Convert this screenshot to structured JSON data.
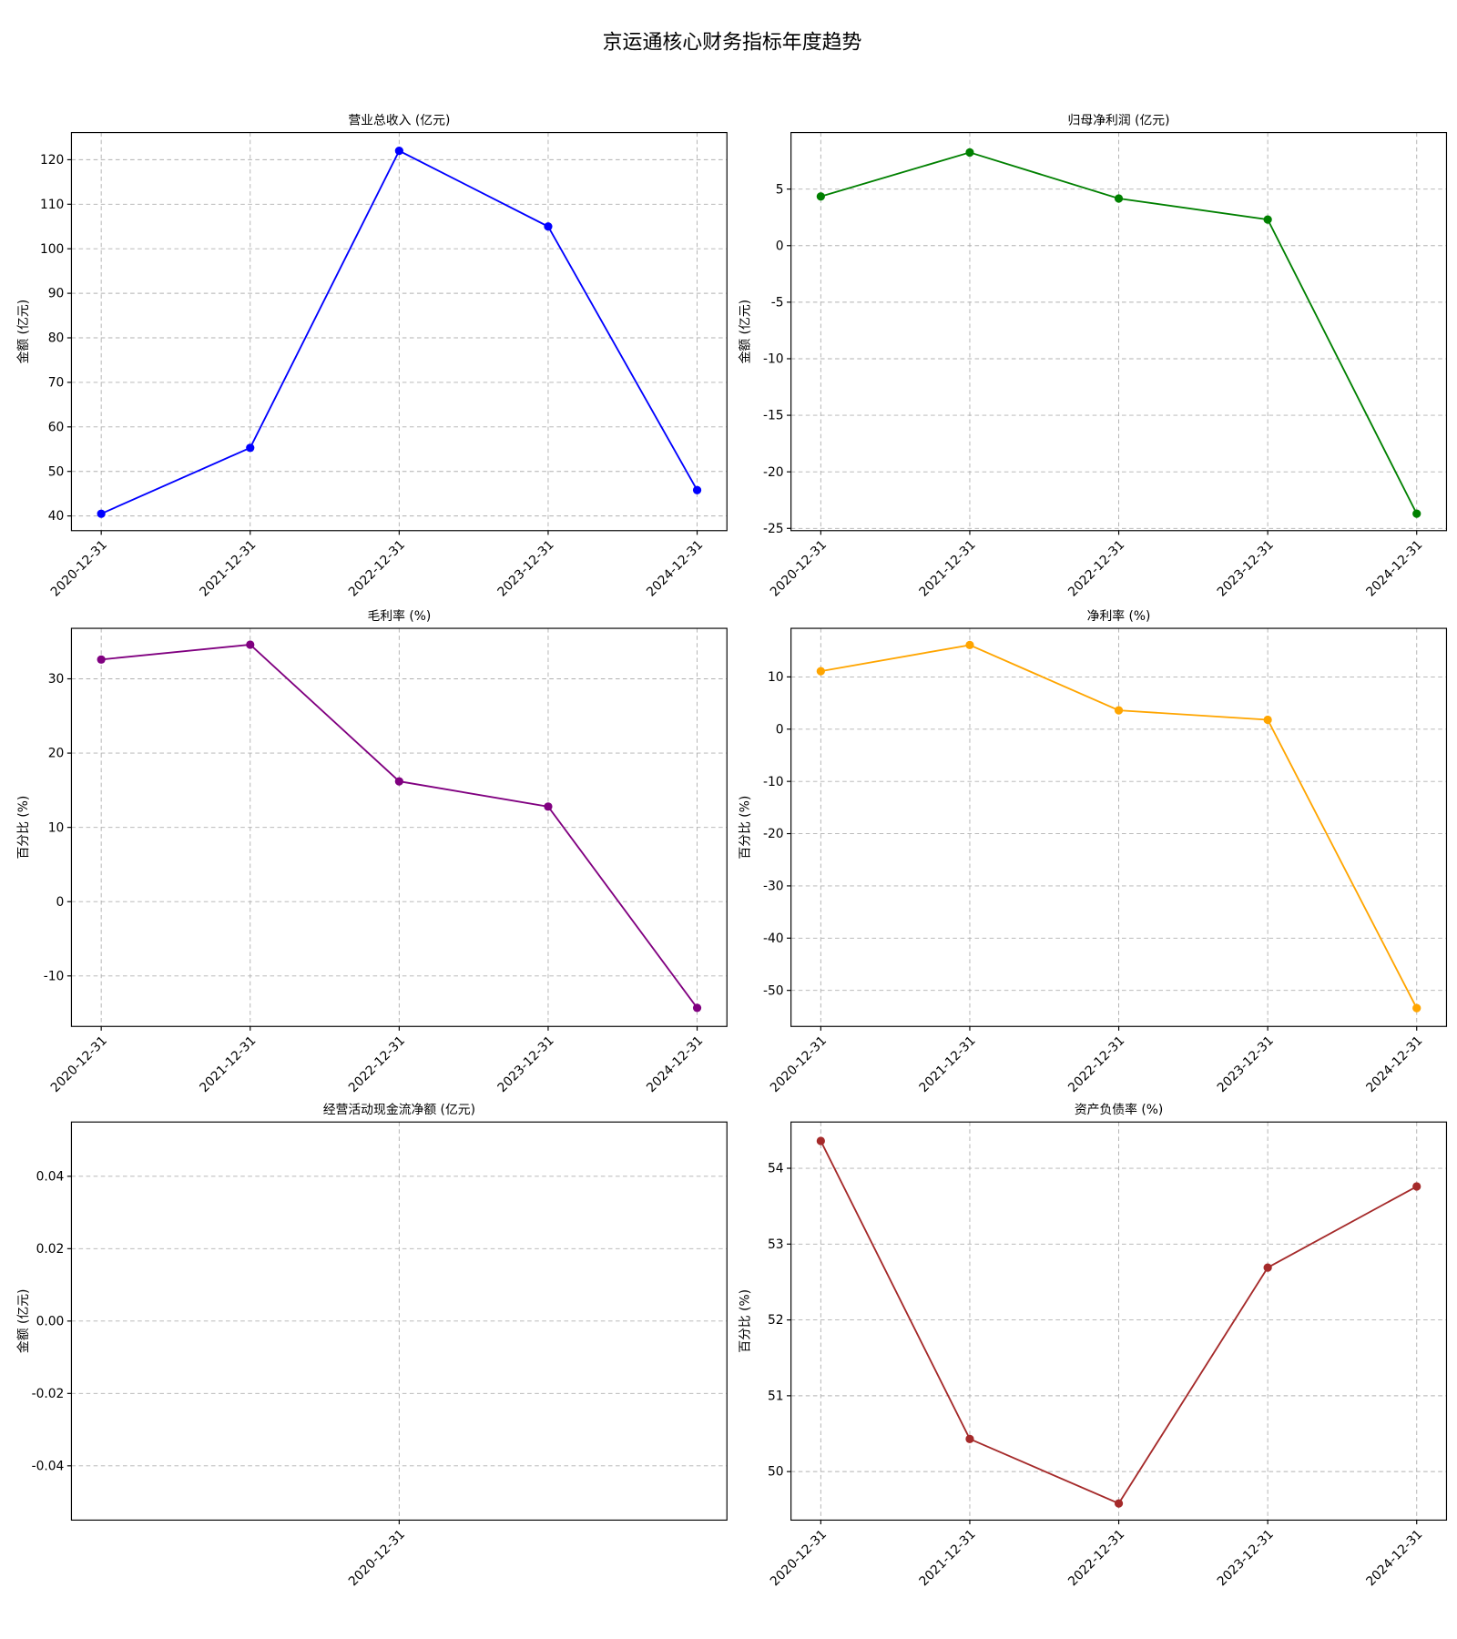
{
  "title": "京运通核心财务指标年度趋势",
  "chart_data": [
    {
      "type": "line",
      "title": "营业总收入 (亿元)",
      "ylabel": "金额 (亿元)",
      "categories": [
        "2020-12-31",
        "2021-12-31",
        "2022-12-31",
        "2023-12-31",
        "2024-12-31"
      ],
      "values": [
        40.5,
        55.3,
        122,
        105,
        45.8
      ],
      "color": "#0000ff",
      "ylim": [
        36.7,
        126.1
      ],
      "yticks": [
        40,
        50,
        60,
        70,
        80,
        90,
        100,
        110,
        120
      ],
      "grid": true
    },
    {
      "type": "line",
      "title": "归母净利润 (亿元)",
      "ylabel": "金额 (亿元)",
      "categories": [
        "2020-12-31",
        "2021-12-31",
        "2022-12-31",
        "2023-12-31",
        "2024-12-31"
      ],
      "values": [
        4.35,
        8.24,
        4.17,
        2.31,
        -23.7
      ],
      "color": "#008000",
      "ylim": [
        -25.2,
        10.0
      ],
      "yticks": [
        -25,
        -20,
        -15,
        -10,
        -5,
        0,
        5
      ],
      "grid": true
    },
    {
      "type": "line",
      "title": "毛利率 (%)",
      "ylabel": "百分比 (%)",
      "categories": [
        "2020-12-31",
        "2021-12-31",
        "2022-12-31",
        "2023-12-31",
        "2024-12-31"
      ],
      "values": [
        32.6,
        34.6,
        16.2,
        12.8,
        -14.3
      ],
      "color": "#800080",
      "ylim": [
        -16.8,
        36.8
      ],
      "yticks": [
        -10,
        0,
        10,
        20,
        30
      ],
      "grid": true
    },
    {
      "type": "line",
      "title": "净利率 (%)",
      "ylabel": "百分比 (%)",
      "categories": [
        "2020-12-31",
        "2021-12-31",
        "2022-12-31",
        "2023-12-31",
        "2024-12-31"
      ],
      "values": [
        11.1,
        16.1,
        3.6,
        1.8,
        -53.4
      ],
      "color": "#ffa500",
      "ylim": [
        -56.9,
        19.3
      ],
      "yticks": [
        -50,
        -40,
        -30,
        -20,
        -10,
        0,
        10
      ],
      "grid": true
    },
    {
      "type": "line",
      "title": "经营活动现金流净额 (亿元)",
      "ylabel": "金额 (亿元)",
      "categories": [
        "2020-12-31"
      ],
      "values": [
        null
      ],
      "ylim": [
        -0.055,
        0.055
      ],
      "yticks": [
        -0.04,
        -0.02,
        {
          "value": 0,
          "label": "0.00"
        },
        0.02,
        0.04
      ],
      "grid": true
    },
    {
      "type": "line",
      "title": "资产负债率 (%)",
      "ylabel": "百分比 (%)",
      "categories": [
        "2020-12-31",
        "2021-12-31",
        "2022-12-31",
        "2023-12-31",
        "2024-12-31"
      ],
      "values": [
        54.36,
        50.43,
        49.58,
        52.69,
        53.76
      ],
      "color": "#a52a2a",
      "ylim": [
        49.36,
        54.61
      ],
      "yticks": [
        50,
        51,
        52,
        53,
        54
      ],
      "grid": true
    }
  ]
}
